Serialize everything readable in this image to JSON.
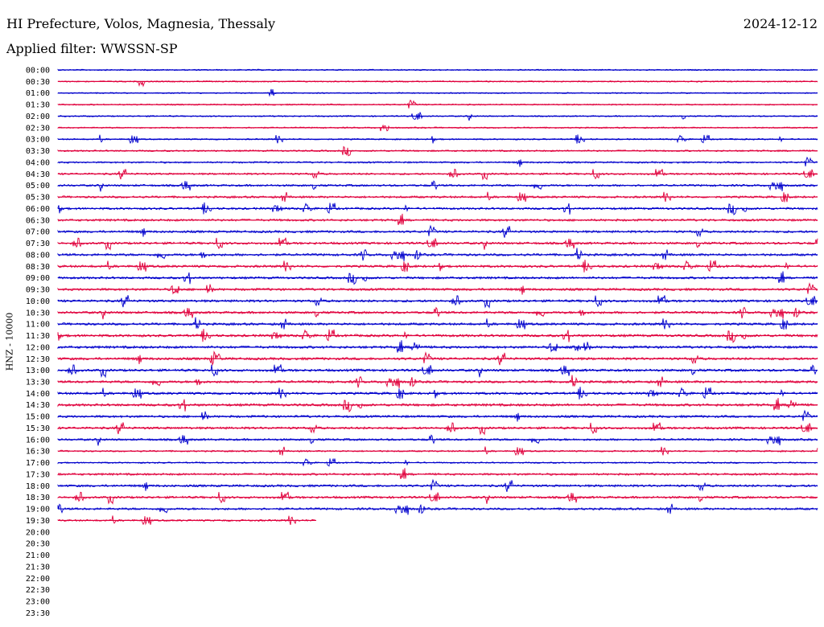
{
  "header": {
    "title": "HI Prefecture, Volos, Magnesia, Thessaly",
    "date": "2024-12-12",
    "filter": "Applied filter: WWSSN-SP"
  },
  "chart_data": {
    "type": "line",
    "title": "HI Prefecture, Volos, Magnesia, Thessaly",
    "ylabel": "HNZ - 10000",
    "colors": [
      "#0000cc",
      "#e0003c"
    ],
    "grid": false,
    "rows": [
      {
        "label": "00:00",
        "progress": 1.0,
        "activity": 0.15
      },
      {
        "label": "00:30",
        "progress": 1.0,
        "activity": 0.15
      },
      {
        "label": "01:00",
        "progress": 1.0,
        "activity": 0.12
      },
      {
        "label": "01:30",
        "progress": 1.0,
        "activity": 0.18
      },
      {
        "label": "02:00",
        "progress": 1.0,
        "activity": 0.15
      },
      {
        "label": "02:30",
        "progress": 1.0,
        "activity": 0.18
      },
      {
        "label": "03:00",
        "progress": 1.0,
        "activity": 0.22
      },
      {
        "label": "03:30",
        "progress": 1.0,
        "activity": 0.3
      },
      {
        "label": "04:00",
        "progress": 1.0,
        "activity": 0.35
      },
      {
        "label": "04:30",
        "progress": 1.0,
        "activity": 0.45
      },
      {
        "label": "05:00",
        "progress": 1.0,
        "activity": 0.55
      },
      {
        "label": "05:30",
        "progress": 1.0,
        "activity": 0.55
      },
      {
        "label": "06:00",
        "progress": 1.0,
        "activity": 0.6
      },
      {
        "label": "06:30",
        "progress": 1.0,
        "activity": 0.6
      },
      {
        "label": "07:00",
        "progress": 1.0,
        "activity": 0.65
      },
      {
        "label": "07:30",
        "progress": 1.0,
        "activity": 0.65
      },
      {
        "label": "08:00",
        "progress": 1.0,
        "activity": 0.7
      },
      {
        "label": "08:30",
        "progress": 1.0,
        "activity": 0.7
      },
      {
        "label": "09:00",
        "progress": 1.0,
        "activity": 0.65
      },
      {
        "label": "09:30",
        "progress": 1.0,
        "activity": 0.7
      },
      {
        "label": "10:00",
        "progress": 1.0,
        "activity": 0.7
      },
      {
        "label": "10:30",
        "progress": 1.0,
        "activity": 0.7
      },
      {
        "label": "11:00",
        "progress": 1.0,
        "activity": 0.7
      },
      {
        "label": "11:30",
        "progress": 1.0,
        "activity": 0.75
      },
      {
        "label": "12:00",
        "progress": 1.0,
        "activity": 0.75
      },
      {
        "label": "12:30",
        "progress": 1.0,
        "activity": 0.75
      },
      {
        "label": "13:00",
        "progress": 1.0,
        "activity": 0.75
      },
      {
        "label": "13:30",
        "progress": 1.0,
        "activity": 0.7
      },
      {
        "label": "14:00",
        "progress": 1.0,
        "activity": 0.7
      },
      {
        "label": "14:30",
        "progress": 1.0,
        "activity": 0.75
      },
      {
        "label": "15:00",
        "progress": 1.0,
        "activity": 0.65
      },
      {
        "label": "15:30",
        "progress": 1.0,
        "activity": 0.65
      },
      {
        "label": "16:00",
        "progress": 1.0,
        "activity": 0.55
      },
      {
        "label": "16:30",
        "progress": 1.0,
        "activity": 0.3
      },
      {
        "label": "17:00",
        "progress": 1.0,
        "activity": 0.2
      },
      {
        "label": "17:30",
        "progress": 1.0,
        "activity": 0.55
      },
      {
        "label": "18:00",
        "progress": 1.0,
        "activity": 0.65
      },
      {
        "label": "18:30",
        "progress": 1.0,
        "activity": 0.65
      },
      {
        "label": "19:00",
        "progress": 1.0,
        "activity": 0.6
      },
      {
        "label": "19:30",
        "progress": 0.34,
        "activity": 0.4
      },
      {
        "label": "20:00",
        "progress": 0.0,
        "activity": 0.0
      },
      {
        "label": "20:30",
        "progress": 0.0,
        "activity": 0.0
      },
      {
        "label": "21:00",
        "progress": 0.0,
        "activity": 0.0
      },
      {
        "label": "21:30",
        "progress": 0.0,
        "activity": 0.0
      },
      {
        "label": "22:00",
        "progress": 0.0,
        "activity": 0.0
      },
      {
        "label": "22:30",
        "progress": 0.0,
        "activity": 0.0
      },
      {
        "label": "23:00",
        "progress": 0.0,
        "activity": 0.0
      },
      {
        "label": "23:30",
        "progress": 0.0,
        "activity": 0.0
      }
    ]
  }
}
